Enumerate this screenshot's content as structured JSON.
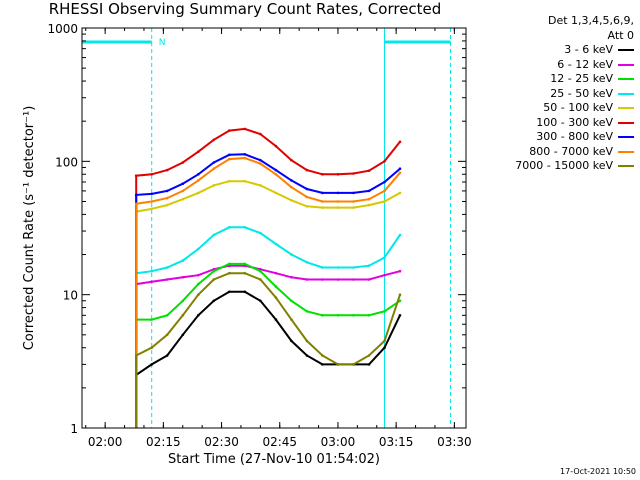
{
  "chart_data": {
    "type": "line",
    "title": "RHESSI Observing Summary Count Rates, Corrected",
    "xlabel": "Start Time (27-Nov-10 01:54:02)",
    "ylabel": "Corrected Count Rate (s⁻¹ detector⁻¹)",
    "yscale": "log",
    "ylim": [
      1,
      1000
    ],
    "xlim": [
      "01:54:02",
      "03:33:00"
    ],
    "x_ticks": [
      "02:00",
      "02:15",
      "02:30",
      "02:45",
      "03:00",
      "03:15",
      "03:30"
    ],
    "y_ticks": [
      "1",
      "10",
      "100",
      "1000"
    ],
    "legend_header": [
      "Det 1,3,4,5,6,9,",
      "Att 0"
    ],
    "legend_placement": "top-right outside",
    "annotation_N": "N",
    "x": [
      "02:08",
      "02:12",
      "02:16",
      "02:20",
      "02:24",
      "02:28",
      "02:32",
      "02:36",
      "02:40",
      "02:44",
      "02:48",
      "02:52",
      "02:56",
      "03:00",
      "03:04",
      "03:08",
      "03:12",
      "03:16"
    ],
    "series": [
      {
        "name": "3 - 6 keV",
        "color": "#000000",
        "values": [
          2.5,
          3,
          3.5,
          5,
          7,
          9,
          10.5,
          10.5,
          9,
          6.5,
          4.5,
          3.5,
          3,
          3,
          3,
          3,
          4,
          7
        ]
      },
      {
        "name": "6 - 12 keV",
        "color": "#e000e0",
        "values": [
          12,
          12.5,
          13,
          13.5,
          14,
          15.5,
          16.5,
          16.5,
          15.5,
          14.5,
          13.5,
          13,
          13,
          13,
          13,
          13,
          14,
          15
        ]
      },
      {
        "name": "12 - 25 keV",
        "color": "#00e000",
        "values": [
          6.5,
          6.5,
          7,
          9,
          12,
          15,
          17,
          17,
          15,
          11.5,
          9,
          7.5,
          7,
          7,
          7,
          7,
          7.5,
          9
        ]
      },
      {
        "name": "25 - 50 keV",
        "color": "#00e8e8",
        "values": [
          14.5,
          15,
          16,
          18,
          22,
          28,
          32,
          32,
          29,
          24,
          20,
          17.5,
          16,
          16,
          16,
          16.5,
          19,
          28
        ]
      },
      {
        "name": "50 - 100 keV",
        "color": "#d8c800",
        "values": [
          42,
          44,
          47,
          52,
          58,
          66,
          71,
          71,
          66,
          58,
          51,
          46,
          45,
          45,
          45,
          47,
          50,
          58
        ]
      },
      {
        "name": "100 - 300 keV",
        "color": "#e00000",
        "values": [
          78,
          80,
          86,
          98,
          118,
          145,
          170,
          175,
          160,
          130,
          102,
          86,
          80,
          80,
          81,
          85,
          100,
          140
        ]
      },
      {
        "name": "300 - 800 keV",
        "color": "#0000ff",
        "values": [
          56,
          57,
          60,
          68,
          80,
          98,
          112,
          113,
          102,
          86,
          72,
          62,
          58,
          58,
          58,
          60,
          70,
          88
        ]
      },
      {
        "name": "800 - 7000 keV",
        "color": "#ff8000",
        "values": [
          48,
          50,
          53,
          60,
          72,
          88,
          104,
          106,
          96,
          80,
          64,
          54,
          50,
          50,
          50,
          52,
          60,
          82
        ]
      },
      {
        "name": "7000 - 15000 keV",
        "color": "#808000",
        "values": [
          3.5,
          4,
          5,
          7,
          10,
          13,
          14.5,
          14.5,
          13,
          9.5,
          6.5,
          4.5,
          3.5,
          3,
          3,
          3.5,
          4.5,
          10
        ]
      }
    ]
  },
  "footer": {
    "timestamp": "17-Oct-2021 10:50"
  }
}
